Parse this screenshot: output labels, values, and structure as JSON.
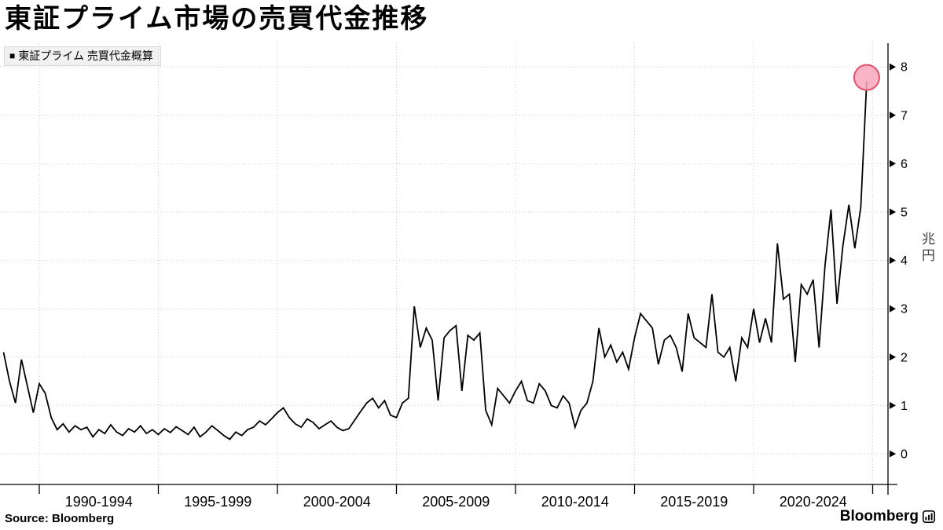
{
  "title": "東証プライム市場の売買代金推移",
  "legend": {
    "marker": "■",
    "label": "東証プライム 売買代金概算"
  },
  "source_note": "Source: Bloomberg",
  "brand": {
    "name": "Bloomberg"
  },
  "chart_data": {
    "type": "line",
    "title": "東証プライム市場の売買代金推移",
    "series_name": "東証プライム 売買代金概算",
    "ylabel": "兆円",
    "ylim": [
      0,
      8
    ],
    "yticks": [
      0,
      1,
      2,
      3,
      4,
      5,
      6,
      7,
      8
    ],
    "xtick_labels": [
      "1990-1994",
      "1995-1999",
      "2000-2004",
      "2005-2009",
      "2010-2014",
      "2015-2019",
      "2020-2024"
    ],
    "x_gridline_years": [
      1990,
      1995,
      2000,
      2005,
      2010,
      2015,
      2020,
      2025
    ],
    "grid": "dotted",
    "grid_color": "#c9c9c9",
    "line_color": "#000000",
    "axis_color": "#000000",
    "legend_position": "top-left",
    "y_axis_side": "right",
    "x_start_year": 1988.5,
    "x_step_years": 0.25,
    "values": [
      2.1,
      1.5,
      1.05,
      1.95,
      1.4,
      0.85,
      1.45,
      1.25,
      0.75,
      0.5,
      0.62,
      0.45,
      0.58,
      0.5,
      0.55,
      0.35,
      0.5,
      0.42,
      0.6,
      0.45,
      0.38,
      0.52,
      0.45,
      0.58,
      0.42,
      0.5,
      0.4,
      0.52,
      0.44,
      0.56,
      0.48,
      0.4,
      0.55,
      0.35,
      0.45,
      0.58,
      0.48,
      0.38,
      0.3,
      0.45,
      0.38,
      0.5,
      0.55,
      0.68,
      0.6,
      0.72,
      0.85,
      0.95,
      0.75,
      0.62,
      0.55,
      0.72,
      0.65,
      0.52,
      0.6,
      0.68,
      0.55,
      0.48,
      0.52,
      0.7,
      0.88,
      1.05,
      1.15,
      0.95,
      1.1,
      0.8,
      0.75,
      1.05,
      1.15,
      3.05,
      2.2,
      2.6,
      2.35,
      1.1,
      2.4,
      2.55,
      2.65,
      1.3,
      2.45,
      2.35,
      2.5,
      0.9,
      0.6,
      1.35,
      1.2,
      1.05,
      1.3,
      1.5,
      1.1,
      1.05,
      1.45,
      1.3,
      1.0,
      0.95,
      1.2,
      1.05,
      0.55,
      0.9,
      1.05,
      1.5,
      2.6,
      2.0,
      2.25,
      1.9,
      2.1,
      1.75,
      2.4,
      2.9,
      2.75,
      2.6,
      1.85,
      2.35,
      2.45,
      2.2,
      1.7,
      2.9,
      2.4,
      2.3,
      2.2,
      3.3,
      2.1,
      2.0,
      2.2,
      1.5,
      2.4,
      2.2,
      3.0,
      2.3,
      2.8,
      2.3,
      4.35,
      3.2,
      3.3,
      1.9,
      3.5,
      3.3,
      3.6,
      2.2,
      3.9,
      5.05,
      3.1,
      4.3,
      5.15,
      4.25,
      5.1,
      7.7
    ],
    "highlight_last_point": {
      "value": 7.7,
      "fill": "#f8a8bb",
      "stroke": "#e1516c"
    }
  }
}
